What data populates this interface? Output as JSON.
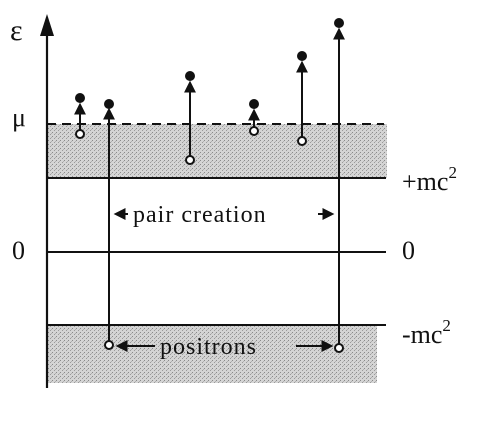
{
  "diagram": {
    "axis_label": "ε",
    "labels": {
      "mu": "μ",
      "zero_left": "0",
      "zero_right": "0",
      "plus_mc2": "+mc",
      "minus_mc2": "-mc",
      "exponent": "2",
      "pair_creation": "pair  creation",
      "positrons": "positrons"
    },
    "colors": {
      "ink": "#111111",
      "band_fill": "#c9c9c9"
    }
  }
}
